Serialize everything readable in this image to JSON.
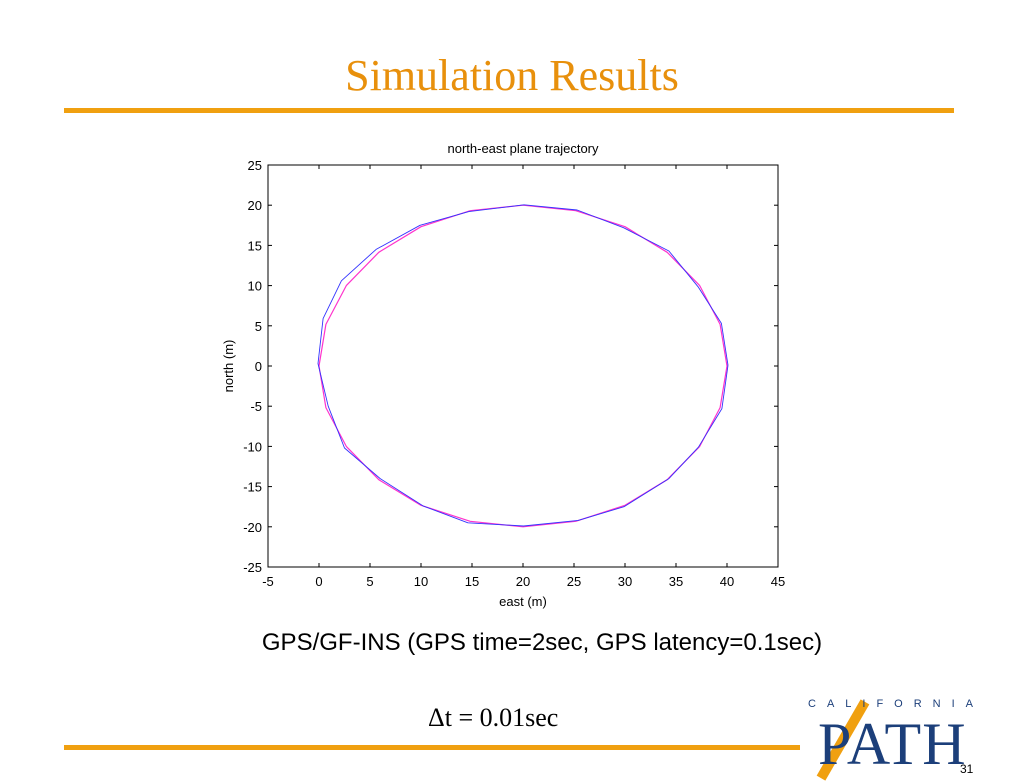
{
  "slide": {
    "title": "Simulation Results",
    "caption": "GPS/GF-INS (GPS time=2sec, GPS latency=0.1sec)",
    "formula": {
      "delta_t": "Δt",
      "equals": "= 0.01sec"
    },
    "slide_number": "31",
    "logo": {
      "top_text": "CALIFORNIA",
      "main_text": "PATH"
    }
  },
  "colors": {
    "accent": "#f0a010",
    "title": "#e8900c",
    "logo": "#1c3f7a",
    "series_reference": "#ff33cc",
    "series_estimate": "#3333ff"
  },
  "chart_data": {
    "type": "line",
    "title": "north-east plane trajectory",
    "xlabel": "east (m)",
    "ylabel": "north (m)",
    "xlim": [
      -5,
      45
    ],
    "ylim": [
      -25,
      25
    ],
    "xticks": [
      -5,
      0,
      5,
      10,
      15,
      20,
      25,
      30,
      35,
      40,
      45
    ],
    "yticks": [
      25,
      20,
      15,
      10,
      5,
      0,
      -5,
      -10,
      -15,
      -20,
      -25
    ],
    "grid": false,
    "series": [
      {
        "color": "#ff33cc",
        "x": [
          40,
          39.32,
          37.32,
          34.14,
          30,
          25.18,
          20,
          14.82,
          10,
          5.86,
          2.68,
          0.68,
          0,
          0.68,
          2.68,
          5.86,
          10,
          14.82,
          20,
          25.18,
          30,
          34.14,
          37.32,
          39.32,
          40
        ],
        "y": [
          0,
          5.18,
          10,
          14.14,
          17.32,
          19.32,
          20,
          19.32,
          17.32,
          14.14,
          10,
          5.18,
          0,
          -5.18,
          -10,
          -14.14,
          -17.32,
          -19.32,
          -20,
          -19.32,
          -17.32,
          -14.14,
          -10,
          -5.18,
          0
        ]
      },
      {
        "color": "#3333ff",
        "x": [
          40.1,
          39.45,
          37.2,
          34.3,
          29.85,
          25.3,
          20.1,
          14.7,
          9.9,
          5.6,
          2.2,
          0.4,
          -0.1,
          0.9,
          2.5,
          6.0,
          10.2,
          14.6,
          20.05,
          25.4,
          29.9,
          34.3,
          37.2,
          39.5,
          40.1
        ],
        "y": [
          0.1,
          5.3,
          9.8,
          14.3,
          17.2,
          19.4,
          20.05,
          19.2,
          17.5,
          14.5,
          10.6,
          5.9,
          0.3,
          -5.0,
          -10.2,
          -14.0,
          -17.4,
          -19.5,
          -19.9,
          -19.2,
          -17.5,
          -14.0,
          -10.1,
          -5.3,
          0.1
        ]
      }
    ]
  }
}
